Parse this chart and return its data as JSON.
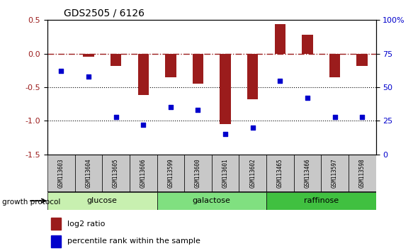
{
  "title": "GDS2505 / 6126",
  "samples": [
    "GSM113603",
    "GSM113604",
    "GSM113605",
    "GSM113606",
    "GSM113599",
    "GSM113600",
    "GSM113601",
    "GSM113602",
    "GSM113465",
    "GSM113466",
    "GSM113597",
    "GSM113598"
  ],
  "log2_ratio": [
    0.0,
    -0.05,
    -0.18,
    -0.62,
    -0.35,
    -0.45,
    -1.05,
    -0.68,
    0.44,
    0.28,
    -0.35,
    -0.18
  ],
  "percentile_rank": [
    62,
    58,
    28,
    22,
    35,
    33,
    15,
    20,
    55,
    42,
    28,
    28
  ],
  "groups": [
    {
      "label": "glucose",
      "start": 0,
      "end": 4,
      "color": "#c8f0b0"
    },
    {
      "label": "galactose",
      "start": 4,
      "end": 8,
      "color": "#80e080"
    },
    {
      "label": "raffinose",
      "start": 8,
      "end": 12,
      "color": "#40c040"
    }
  ],
  "ylim_left": [
    -1.5,
    0.5
  ],
  "ylim_right": [
    0,
    100
  ],
  "yticks_left": [
    -1.5,
    -1.0,
    -0.5,
    0.0,
    0.5
  ],
  "yticks_right": [
    0,
    25,
    50,
    75,
    100
  ],
  "bar_color": "#9B1C1C",
  "dot_color": "#0000CC",
  "dotted_lines": [
    -0.5,
    -1.0
  ],
  "legend_items": [
    {
      "label": "log2 ratio",
      "color": "#9B1C1C"
    },
    {
      "label": "percentile rank within the sample",
      "color": "#0000CC"
    }
  ],
  "growth_protocol_label": "growth protocol",
  "sample_box_color": "#c8c8c8",
  "bar_width": 0.4
}
